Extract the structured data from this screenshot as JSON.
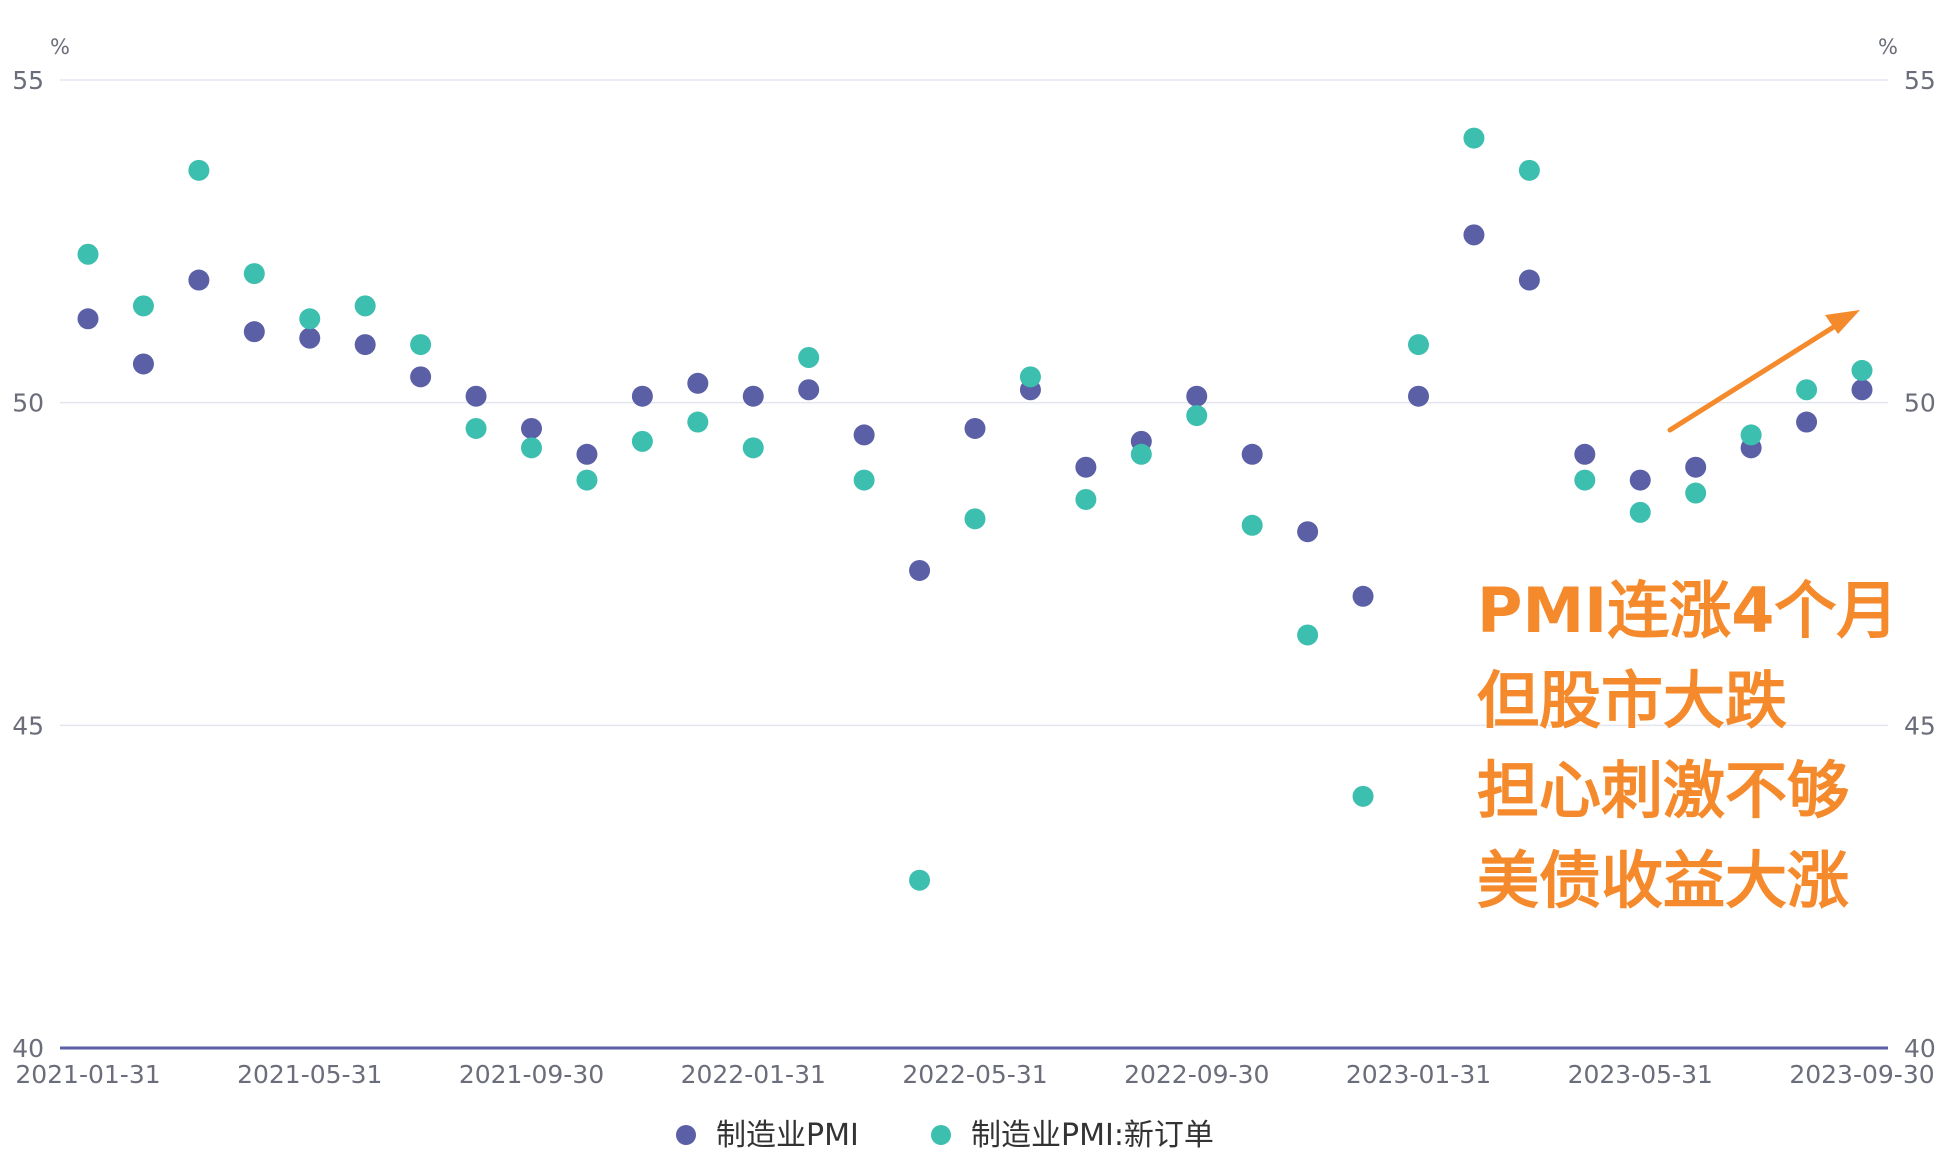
{
  "chart_data": {
    "type": "scatter",
    "y_unit_left": "%",
    "y_unit_right": "%",
    "ylim": [
      40,
      55
    ],
    "yticks": [
      40,
      45,
      50,
      55
    ],
    "x_tick_labels": [
      "2021-01-31",
      "2021-05-31",
      "2021-09-30",
      "2022-01-31",
      "2022-05-31",
      "2022-09-30",
      "2023-01-31",
      "2023-05-31",
      "2023-09-30"
    ],
    "x": [
      "2021-01-31",
      "2021-02-28",
      "2021-03-31",
      "2021-04-30",
      "2021-05-31",
      "2021-06-30",
      "2021-07-31",
      "2021-08-31",
      "2021-09-30",
      "2021-10-31",
      "2021-11-30",
      "2021-12-31",
      "2022-01-31",
      "2022-02-28",
      "2022-03-31",
      "2022-04-30",
      "2022-05-31",
      "2022-06-30",
      "2022-07-31",
      "2022-08-31",
      "2022-09-30",
      "2022-10-31",
      "2022-11-30",
      "2022-12-31",
      "2023-01-31",
      "2023-02-28",
      "2023-03-31",
      "2023-04-30",
      "2023-05-31",
      "2023-06-30",
      "2023-07-31",
      "2023-08-31",
      "2023-09-30"
    ],
    "series": [
      {
        "name": "制造业PMI",
        "color": "#5b5fa6",
        "values": [
          51.3,
          50.6,
          51.9,
          51.1,
          51.0,
          50.9,
          50.4,
          50.1,
          49.6,
          49.2,
          50.1,
          50.3,
          50.1,
          50.2,
          49.5,
          47.4,
          49.6,
          50.2,
          49.0,
          49.4,
          50.1,
          49.2,
          48.0,
          47.0,
          50.1,
          52.6,
          51.9,
          49.2,
          48.8,
          49.0,
          49.3,
          49.7,
          50.2
        ]
      },
      {
        "name": "制造业PMI:新订单",
        "color": "#3dbfb0",
        "values": [
          52.3,
          51.5,
          53.6,
          52.0,
          51.3,
          51.5,
          50.9,
          49.6,
          49.3,
          48.8,
          49.4,
          49.7,
          49.3,
          50.7,
          48.8,
          42.6,
          48.2,
          50.4,
          48.5,
          49.2,
          49.8,
          48.1,
          46.4,
          43.9,
          50.9,
          54.1,
          53.6,
          48.8,
          48.3,
          48.6,
          49.5,
          50.2,
          50.5
        ]
      }
    ],
    "grid_y": true,
    "legend_position": "bottom-center"
  },
  "annotation": {
    "lines": [
      "PMI连涨4个月",
      "但股市大跌",
      "担心刺激不够",
      "美债收益大涨"
    ],
    "color": "#f58a2c"
  },
  "colors": {
    "axis": "#5b5fa6",
    "grid": "#e4e6ef",
    "tick_text": "#6b6e7a"
  }
}
